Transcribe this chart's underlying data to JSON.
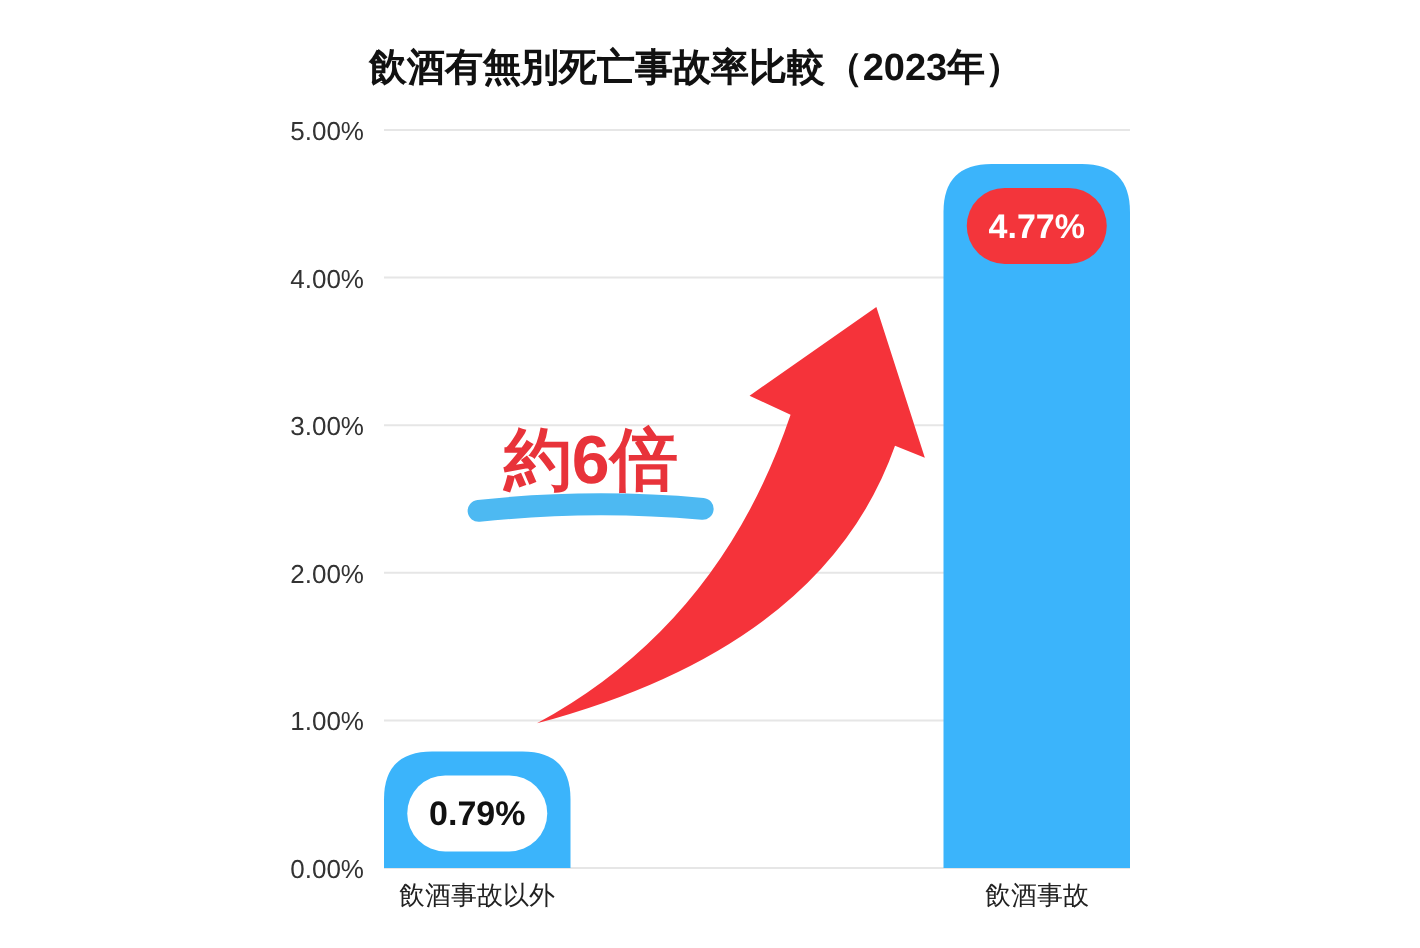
{
  "chart_data": {
    "type": "bar",
    "title": "飲酒有無別死亡事故率比較（2023年）",
    "categories": [
      "飲酒事故以外",
      "飲酒事故"
    ],
    "values": [
      0.79,
      4.77
    ],
    "color": "#3bb4fb",
    "value_labels": [
      "0.79%",
      "4.77%"
    ],
    "ylim": [
      0,
      5
    ],
    "yticks": [
      {
        "value": 0,
        "label": "0.00%"
      },
      {
        "value": 1,
        "label": "1.00%"
      },
      {
        "value": 2,
        "label": "2.00%"
      },
      {
        "value": 3,
        "label": "3.00%"
      },
      {
        "value": 4,
        "label": "4.00%"
      },
      {
        "value": 5,
        "label": "5.00%"
      }
    ],
    "grid": "y",
    "annotations": [
      "約6倍"
    ]
  }
}
